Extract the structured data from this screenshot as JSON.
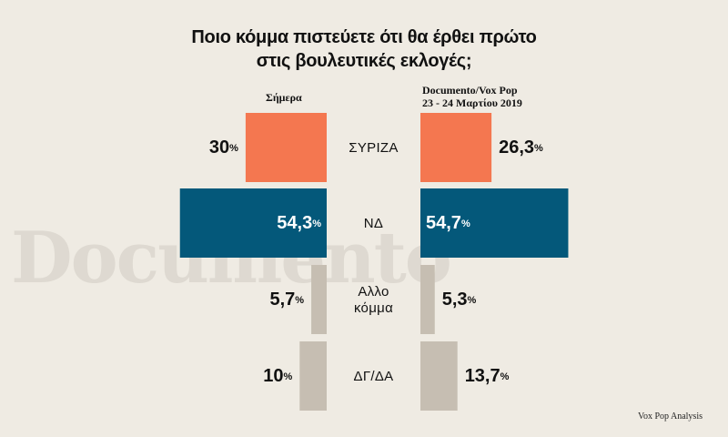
{
  "chart_data": {
    "type": "bar",
    "title_lines": [
      "Ποιο κόμμα πιστεύετε ότι θα έρθει πρώτο",
      "στις βουλευτικές εκλογές;"
    ],
    "categories": [
      {
        "lines": [
          "ΣΥΡΙΖΑ"
        ]
      },
      {
        "lines": [
          "ΝΔ"
        ]
      },
      {
        "lines": [
          "Αλλο",
          "κόμμα"
        ]
      },
      {
        "lines": [
          "ΔΓ/ΔΑ"
        ]
      }
    ],
    "series": [
      {
        "header_lines": [
          "Σήμερα"
        ],
        "values": [
          30,
          54.3,
          5.7,
          10
        ],
        "labels": [
          "30",
          "54,3",
          "5,7",
          "10"
        ],
        "direction": "left"
      },
      {
        "header_lines": [
          "Documento/Vox Pop",
          "23 - 24 Μαρτίου 2019"
        ],
        "values": [
          26.3,
          54.7,
          5.3,
          13.7
        ],
        "labels": [
          "26,3",
          "54,7",
          "5,3",
          "13,7"
        ],
        "direction": "right"
      }
    ],
    "percent_suffix": "%",
    "bar_colors": [
      "#f47750",
      "#04587a",
      "#c6beb2",
      "#c6beb2"
    ],
    "label_on_bar_colors": [
      "#111111",
      "#ffffff",
      "#111111",
      "#111111"
    ]
  },
  "watermark": "Documento",
  "source": "Vox Pop Analysis"
}
